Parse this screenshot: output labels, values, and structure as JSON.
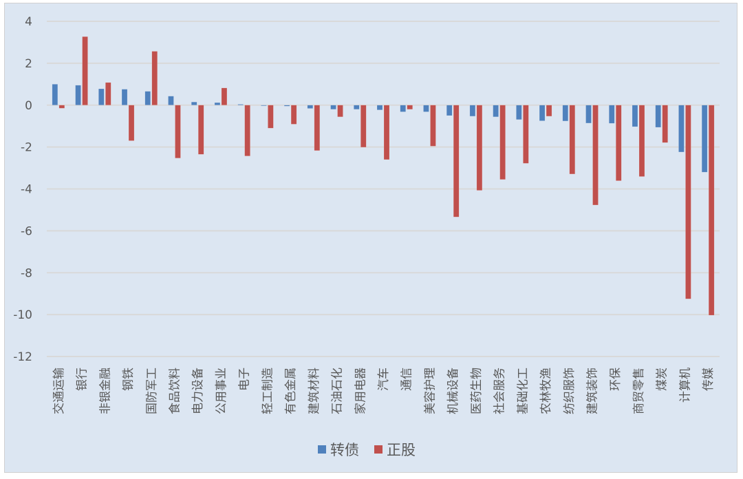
{
  "chart_data": {
    "type": "bar",
    "title": "",
    "xlabel": "",
    "ylabel": "",
    "ylim": [
      -12,
      4
    ],
    "yticks": [
      4,
      2,
      0,
      -2,
      -4,
      -6,
      -8,
      -10,
      -12
    ],
    "grid": true,
    "legend_position": "bottom",
    "categories": [
      "交通运输",
      "银行",
      "非银金融",
      "钢铁",
      "国防军工",
      "食品饮料",
      "电力设备",
      "公用事业",
      "电子",
      "轻工制造",
      "有色金属",
      "建筑材料",
      "石油石化",
      "家用电器",
      "汽车",
      "通信",
      "美容护理",
      "机械设备",
      "医药生物",
      "社会服务",
      "基础化工",
      "农林牧渔",
      "纺织服饰",
      "建筑装饰",
      "环保",
      "商贸零售",
      "煤炭",
      "计算机",
      "传媒"
    ],
    "series": [
      {
        "name": "转债",
        "color": "#4f81bd",
        "values": [
          1.0,
          0.95,
          0.78,
          0.76,
          0.66,
          0.43,
          0.15,
          0.12,
          0.04,
          -0.03,
          -0.05,
          -0.16,
          -0.2,
          -0.2,
          -0.23,
          -0.32,
          -0.32,
          -0.5,
          -0.53,
          -0.56,
          -0.69,
          -0.75,
          -0.76,
          -0.86,
          -0.87,
          -1.03,
          -1.06,
          -2.24,
          -3.2
        ]
      },
      {
        "name": "正股",
        "color": "#c0504d",
        "values": [
          -0.15,
          3.27,
          1.08,
          -1.7,
          2.57,
          -2.53,
          -2.35,
          0.82,
          -2.43,
          -1.1,
          -0.91,
          -2.17,
          -0.56,
          -2.01,
          -2.6,
          -0.2,
          -1.96,
          -5.34,
          -4.07,
          -3.55,
          -2.78,
          -0.53,
          -3.29,
          -4.77,
          -3.61,
          -3.41,
          -1.79,
          -9.25,
          -10.03
        ]
      }
    ]
  },
  "legend": {
    "items": [
      {
        "label": "转债",
        "color": "#4f81bd"
      },
      {
        "label": "正股",
        "color": "#c0504d"
      }
    ]
  },
  "colors": {
    "background": "#dce6f2",
    "gridline": "#d9d9d9",
    "axis_text": "#595959"
  }
}
